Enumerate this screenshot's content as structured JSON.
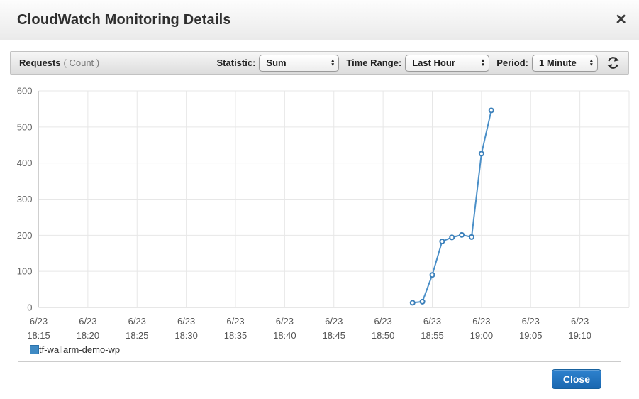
{
  "header": {
    "title": "CloudWatch Monitoring Details",
    "close_icon": "✕"
  },
  "toolbar": {
    "metric_name": "Requests",
    "metric_unit": "( Count )",
    "statistic_label": "Statistic:",
    "statistic_value": "Sum",
    "time_range_label": "Time Range:",
    "time_range_value": "Last Hour",
    "period_label": "Period:",
    "period_value": "1 Minute",
    "refresh_icon": "refresh-arrows-icon"
  },
  "chart_data": {
    "type": "line",
    "title": "Requests ( Count )",
    "xlabel": "",
    "ylabel": "Count",
    "ylim": [
      0,
      600
    ],
    "y_ticks": [
      0,
      100,
      200,
      300,
      400,
      500,
      600
    ],
    "x_domain_minutes": 60,
    "x_tick_interval_minutes": 5,
    "grid": true,
    "legend_position": "bottom-left",
    "x_ticks": [
      {
        "date": "6/23",
        "time": "18:15"
      },
      {
        "date": "6/23",
        "time": "18:20"
      },
      {
        "date": "6/23",
        "time": "18:25"
      },
      {
        "date": "6/23",
        "time": "18:30"
      },
      {
        "date": "6/23",
        "time": "18:35"
      },
      {
        "date": "6/23",
        "time": "18:40"
      },
      {
        "date": "6/23",
        "time": "18:45"
      },
      {
        "date": "6/23",
        "time": "18:50"
      },
      {
        "date": "6/23",
        "time": "18:55"
      },
      {
        "date": "6/23",
        "time": "19:00"
      },
      {
        "date": "6/23",
        "time": "19:05"
      },
      {
        "date": "6/23",
        "time": "19:10"
      }
    ],
    "series": [
      {
        "name": "tf-wallarm-demo-wp",
        "color": "#4a8fc8",
        "marker_stroke": "#3c80ba",
        "swatch_color": "#3f8ac4",
        "points": [
          {
            "time": "18:53",
            "value": 13
          },
          {
            "time": "18:54",
            "value": 16
          },
          {
            "time": "18:55",
            "value": 90
          },
          {
            "time": "18:56",
            "value": 183
          },
          {
            "time": "18:57",
            "value": 194
          },
          {
            "time": "18:58",
            "value": 201
          },
          {
            "time": "18:59",
            "value": 195
          },
          {
            "time": "19:00",
            "value": 426
          },
          {
            "time": "19:01",
            "value": 546
          }
        ]
      }
    ]
  },
  "footer": {
    "close_label": "Close"
  },
  "colors": {
    "accent_blue": "#1a67b0",
    "line_blue": "#4a8fc8",
    "legend_blue": "#3f8ac4",
    "grid_gray": "#e7e7e7",
    "axis_gray": "#cfcfcf"
  }
}
